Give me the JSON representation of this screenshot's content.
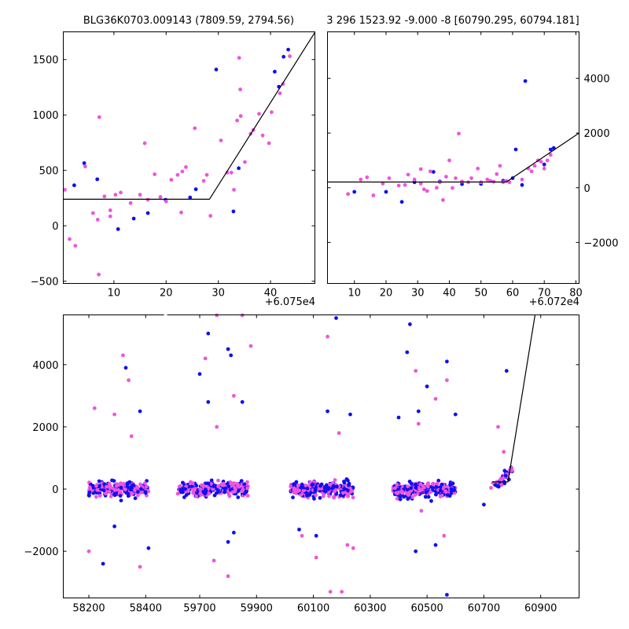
{
  "chart_data": [
    {
      "type": "scatter",
      "title": "BLG36K0703.009143 (7809.59, 2794.56)",
      "offset_label": "+6.075e4",
      "xlim": [
        0.3,
        48.5
      ],
      "ylim": [
        -520,
        1750
      ],
      "xticks": [
        10,
        20,
        30,
        40
      ],
      "yticks": [
        -500,
        0,
        500,
        1000,
        1500
      ],
      "series": [
        {
          "color": "#1010ee",
          "points": [
            [
              2.4,
              365
            ],
            [
              4.3,
              565
            ],
            [
              6.8,
              420
            ],
            [
              10.8,
              -30
            ],
            [
              13.8,
              65
            ],
            [
              16.5,
              115
            ],
            [
              19.9,
              235
            ],
            [
              24.6,
              255
            ],
            [
              25.7,
              330
            ],
            [
              29.6,
              1410
            ],
            [
              32.9,
              130
            ],
            [
              33.9,
              520
            ],
            [
              40.8,
              1390
            ],
            [
              41.6,
              1255
            ],
            [
              42.5,
              1525
            ],
            [
              43.4,
              1590
            ]
          ]
        },
        {
          "color": "#ee55dd",
          "points": [
            [
              0.6,
              325
            ],
            [
              1.5,
              -120
            ],
            [
              2.6,
              -180
            ],
            [
              4.5,
              535
            ],
            [
              6.0,
              115
            ],
            [
              6.9,
              55
            ],
            [
              7.2,
              980
            ],
            [
              7.1,
              -440
            ],
            [
              8.2,
              265
            ],
            [
              9.3,
              140
            ],
            [
              9.3,
              85
            ],
            [
              10.3,
              280
            ],
            [
              11.3,
              300
            ],
            [
              13.2,
              205
            ],
            [
              15.0,
              280
            ],
            [
              15.9,
              745
            ],
            [
              16.5,
              235
            ],
            [
              17.8,
              465
            ],
            [
              18.9,
              260
            ],
            [
              20.0,
              220
            ],
            [
              21.0,
              415
            ],
            [
              22.2,
              460
            ],
            [
              22.9,
              120
            ],
            [
              23.1,
              490
            ],
            [
              23.8,
              530
            ],
            [
              25.5,
              880
            ],
            [
              27.2,
              405
            ],
            [
              27.8,
              460
            ],
            [
              28.5,
              90
            ],
            [
              30.5,
              770
            ],
            [
              31.7,
              480
            ],
            [
              32.5,
              480
            ],
            [
              33.0,
              325
            ],
            [
              33.6,
              950
            ],
            [
              34.0,
              1515
            ],
            [
              34.2,
              1230
            ],
            [
              34.3,
              990
            ],
            [
              35.1,
              575
            ],
            [
              36.2,
              830
            ],
            [
              36.7,
              865
            ],
            [
              37.8,
              1010
            ],
            [
              38.5,
              815
            ],
            [
              39.7,
              745
            ],
            [
              40.2,
              1025
            ],
            [
              41.8,
              1195
            ],
            [
              42.4,
              1280
            ],
            [
              43.7,
              1530
            ]
          ]
        }
      ],
      "model": [
        [
          0.3,
          240
        ],
        [
          28.3,
          240
        ],
        [
          48.5,
          1745
        ]
      ]
    },
    {
      "type": "scatter",
      "title": "3 296 1523.92 -9.000 -8 [60790.295, 60794.181]",
      "offset_label": "+6.072e4",
      "xlim": [
        1.5,
        81
      ],
      "ylim": [
        -3500,
        5700
      ],
      "xticks": [
        10,
        20,
        30,
        40,
        50,
        60,
        70,
        80
      ],
      "yticks": [
        -2000,
        0,
        2000,
        4000
      ],
      "series": [
        {
          "color": "#1010ee",
          "points": [
            [
              10,
              -150
            ],
            [
              20,
              -150
            ],
            [
              25,
              -520
            ],
            [
              29,
              200
            ],
            [
              35,
              580
            ],
            [
              37,
              230
            ],
            [
              44,
              130
            ],
            [
              50,
              140
            ],
            [
              57,
              255
            ],
            [
              60,
              350
            ],
            [
              61,
              1400
            ],
            [
              63,
              100
            ],
            [
              64,
              3900
            ],
            [
              70,
              850
            ],
            [
              72,
              1400
            ],
            [
              73,
              1450
            ]
          ]
        },
        {
          "color": "#ee55dd",
          "points": [
            [
              8,
              -230
            ],
            [
              12,
              300
            ],
            [
              14,
              380
            ],
            [
              16,
              -280
            ],
            [
              19,
              150
            ],
            [
              21,
              350
            ],
            [
              24,
              80
            ],
            [
              26,
              100
            ],
            [
              27,
              480
            ],
            [
              29,
              300
            ],
            [
              31,
              680
            ],
            [
              31,
              150
            ],
            [
              32,
              -60
            ],
            [
              33,
              -120
            ],
            [
              34,
              600
            ],
            [
              36,
              0
            ],
            [
              37,
              200
            ],
            [
              38,
              -450
            ],
            [
              39,
              400
            ],
            [
              40,
              1000
            ],
            [
              41,
              -10
            ],
            [
              42,
              350
            ],
            [
              43,
              1980
            ],
            [
              44,
              230
            ],
            [
              46,
              200
            ],
            [
              47,
              350
            ],
            [
              49,
              700
            ],
            [
              50,
              200
            ],
            [
              52,
              300
            ],
            [
              53,
              250
            ],
            [
              54,
              220
            ],
            [
              55,
              500
            ],
            [
              56,
              800
            ],
            [
              57,
              200
            ],
            [
              58,
              250
            ],
            [
              59,
              200
            ],
            [
              63,
              300
            ],
            [
              65,
              700
            ],
            [
              66,
              600
            ],
            [
              67,
              800
            ],
            [
              68,
              1000
            ],
            [
              69,
              950
            ],
            [
              70,
              700
            ],
            [
              71,
              1000
            ],
            [
              72,
              1200
            ]
          ]
        }
      ],
      "model": [
        [
          1.5,
          210
        ],
        [
          58,
          210
        ],
        [
          81,
          2000
        ]
      ]
    },
    {
      "type": "scatter",
      "xlim": [
        58110,
        61035
      ],
      "ylim": [
        -3500,
        5600
      ],
      "xticks": [
        58200,
        58400,
        59700,
        59900,
        60100,
        60300,
        60500,
        60700,
        60900
      ],
      "yticks": [
        -2000,
        0,
        2000,
        4000
      ],
      "x_break": {
        "left_end": 58470,
        "right_start": 59580
      },
      "seasons": [
        [
          58200,
          58410
        ],
        [
          59620,
          59870
        ],
        [
          60020,
          60240
        ],
        [
          60380,
          60600
        ],
        [
          60720,
          60800
        ]
      ],
      "outliers": {
        "blue": [
          [
            58330,
            3900
          ],
          [
            58290,
            -1200
          ],
          [
            58250,
            -2400
          ],
          [
            58380,
            2500
          ],
          [
            58410,
            -1900
          ],
          [
            59730,
            5000
          ],
          [
            59700,
            3700
          ],
          [
            59730,
            2800
          ],
          [
            59800,
            4500
          ],
          [
            59810,
            4300
          ],
          [
            59850,
            2800
          ],
          [
            59800,
            -1700
          ],
          [
            59820,
            -1400
          ],
          [
            60180,
            5500
          ],
          [
            60150,
            2500
          ],
          [
            60110,
            -1500
          ],
          [
            60440,
            5300
          ],
          [
            60430,
            4400
          ],
          [
            60470,
            2500
          ],
          [
            60500,
            3300
          ],
          [
            60460,
            -2000
          ],
          [
            60530,
            -1800
          ],
          [
            60570,
            4100
          ],
          [
            60570,
            -3400
          ],
          [
            60400,
            2300
          ],
          [
            60780,
            3800
          ],
          [
            60700,
            -500
          ],
          [
            60230,
            2400
          ],
          [
            60050,
            -1300
          ],
          [
            60600,
            2400
          ]
        ],
        "pink": [
          [
            58320,
            4300
          ],
          [
            58340,
            3500
          ],
          [
            58220,
            2600
          ],
          [
            58350,
            1700
          ],
          [
            58290,
            2400
          ],
          [
            58380,
            -2500
          ],
          [
            58200,
            -2000
          ],
          [
            59720,
            4200
          ],
          [
            59760,
            5600
          ],
          [
            59850,
            5600
          ],
          [
            59880,
            4600
          ],
          [
            59760,
            2000
          ],
          [
            59820,
            3000
          ],
          [
            59750,
            -2300
          ],
          [
            59800,
            -2800
          ],
          [
            60150,
            4900
          ],
          [
            60160,
            -3300
          ],
          [
            60200,
            -3300
          ],
          [
            60220,
            -1800
          ],
          [
            60110,
            -2200
          ],
          [
            60240,
            -1900
          ],
          [
            60060,
            -1500
          ],
          [
            60460,
            3800
          ],
          [
            60530,
            2900
          ],
          [
            60570,
            3500
          ],
          [
            60560,
            -1500
          ],
          [
            60480,
            -700
          ],
          [
            60750,
            2000
          ],
          [
            60770,
            1200
          ],
          [
            60190,
            1800
          ],
          [
            60470,
            2100
          ]
        ]
      },
      "model": [
        [
          60730,
          230
        ],
        [
          60785,
          230
        ],
        [
          60880,
          5600
        ]
      ]
    }
  ]
}
